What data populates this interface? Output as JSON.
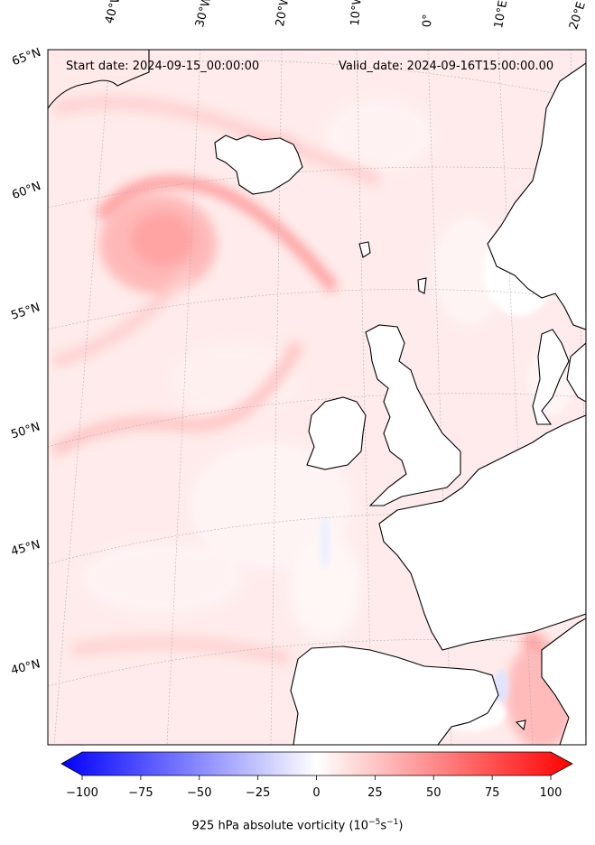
{
  "header": {
    "start_date": "Start date: 2024-09-15_00:00:00",
    "valid_date": "Valid_date: 2024-09-16T15:00:00.00"
  },
  "longitude_labels": [
    "40°W",
    "30°W",
    "20°W",
    "10°W",
    "0°",
    "10°E",
    "20°E"
  ],
  "latitude_labels": [
    "65°N",
    "60°N",
    "55°N",
    "50°N",
    "45°N",
    "40°N"
  ],
  "colorbar": {
    "min": -100,
    "max": 100,
    "ticks": [
      "−100",
      "−75",
      "−50",
      "−25",
      "0",
      "25",
      "50",
      "75",
      "100"
    ],
    "tick_values": [
      -100,
      -75,
      -50,
      -25,
      0,
      25,
      50,
      75,
      100
    ],
    "label_prefix": "925 hPa absolute vorticity (10",
    "label_exp1": "−5",
    "label_mid": "s",
    "label_exp2": "−1",
    "label_suffix": ")",
    "colormap": "bwr",
    "colors": {
      "negative": "#0000ff",
      "zero": "#ffffff",
      "positive": "#ff0000"
    }
  },
  "colors": {
    "background_field": "#ffe9e9",
    "land_outline": "#000000",
    "graticule": "#b0b0b0"
  }
}
